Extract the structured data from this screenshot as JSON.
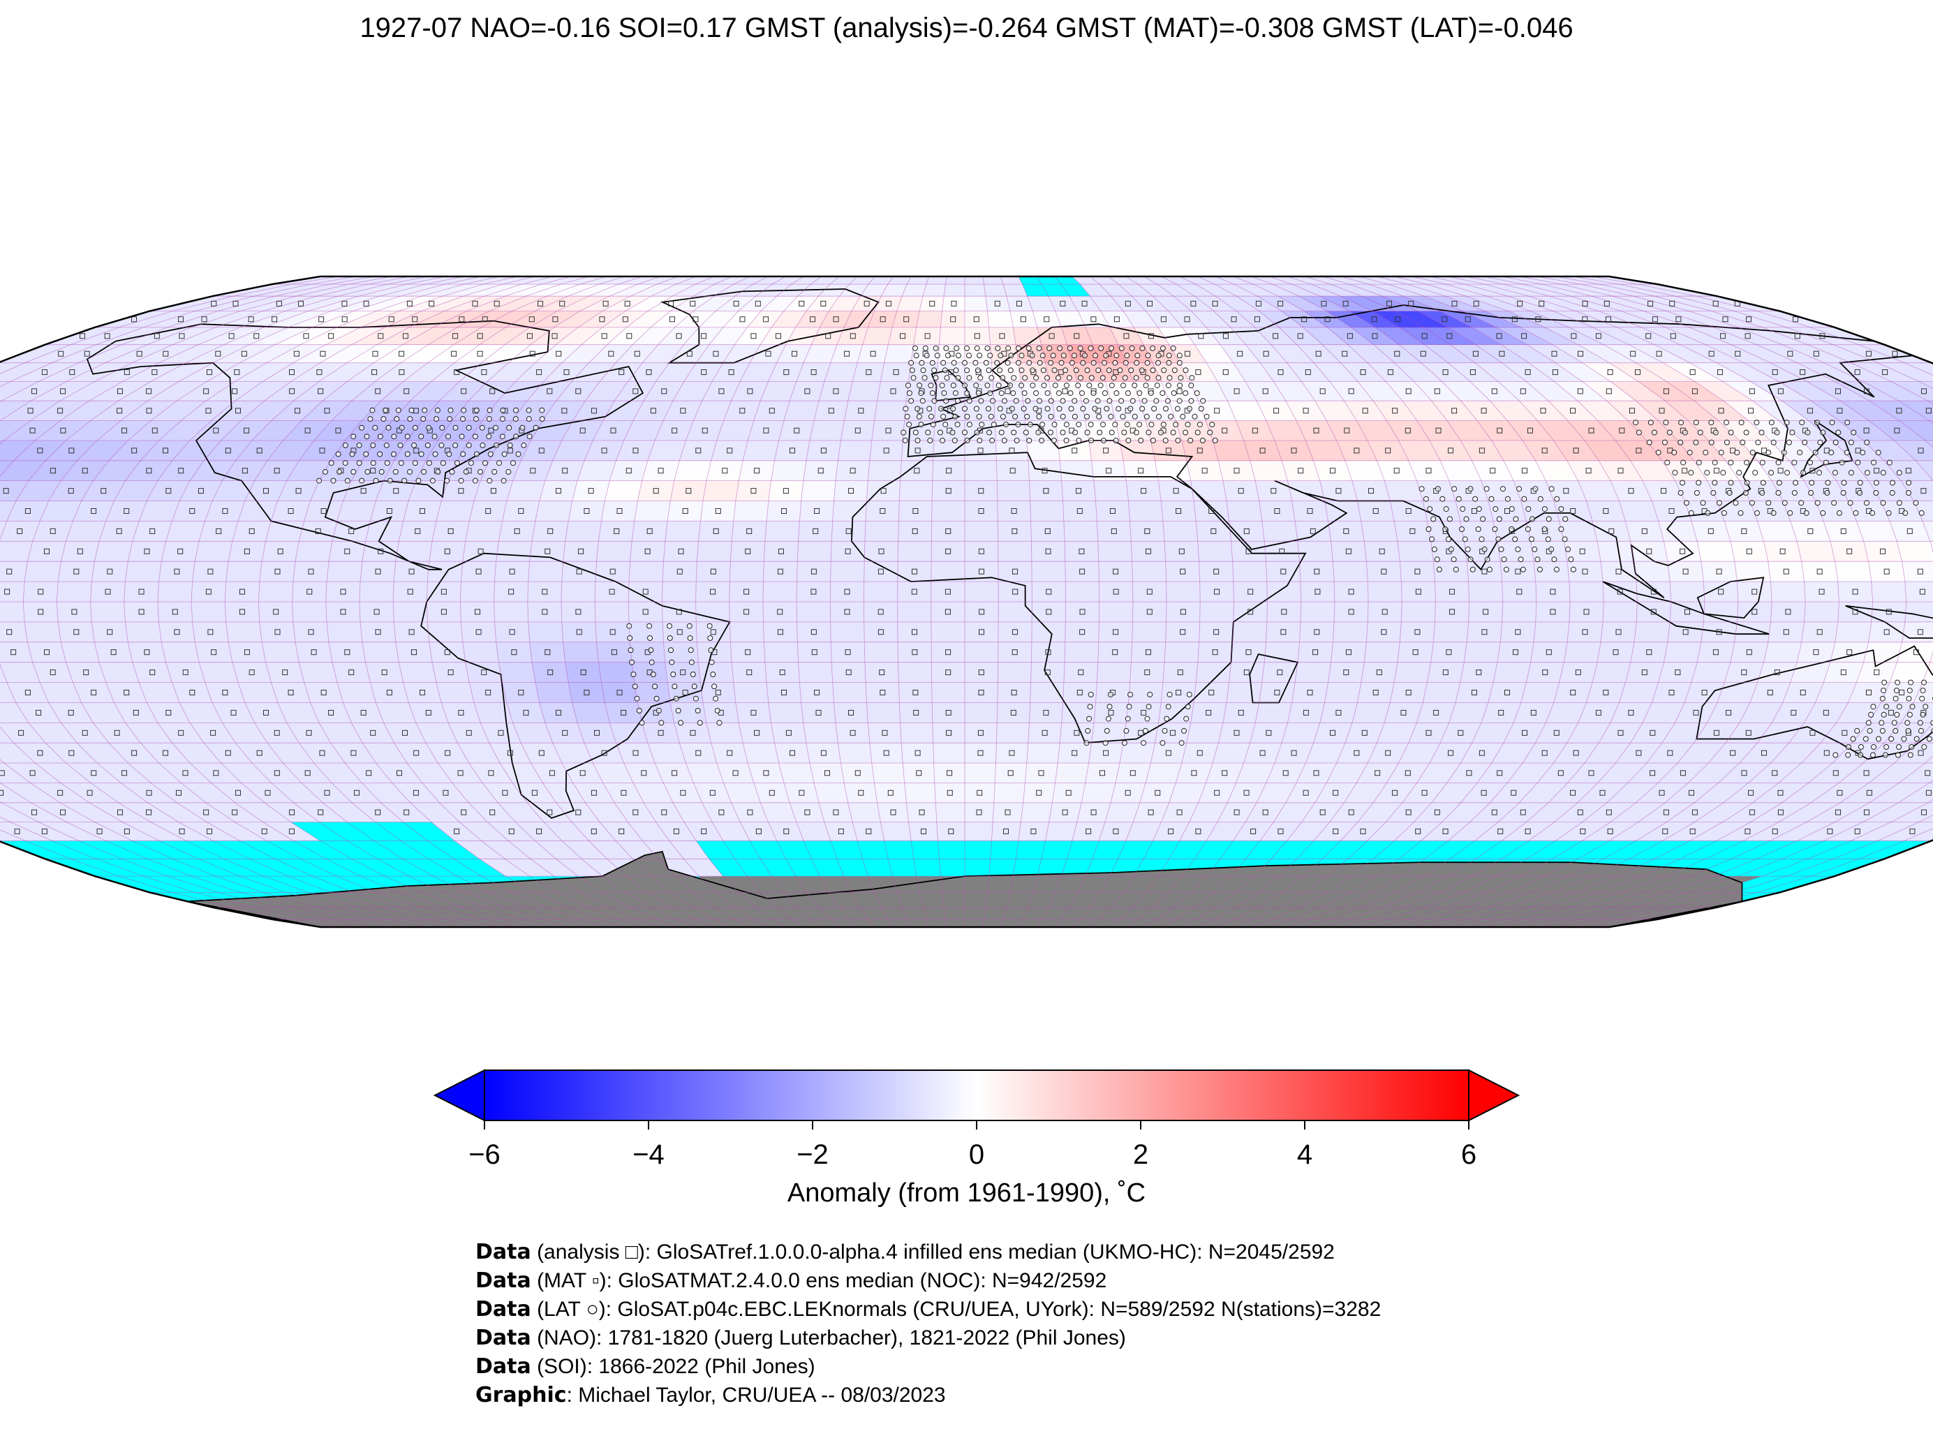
{
  "title": "1927-07 NAO=-0.16 SOI=0.17 GMST (analysis)=-0.264 GMST (MAT)=-0.308 GMST (LAT)=-0.046",
  "colorbar": {
    "ticks": [
      "−6",
      "−4",
      "−2",
      "0",
      "2",
      "4",
      "6"
    ],
    "tick_values": [
      -6,
      -4,
      -2,
      0,
      2,
      4,
      6
    ],
    "label": "Anomaly (from 1961-1990), ˚C",
    "colors": {
      "min": "#0000ff",
      "mid": "#ffffff",
      "max": "#ff0000"
    }
  },
  "map": {
    "projection": "Robinson",
    "grid_resolution_deg": 5,
    "colors": {
      "sea_ice": "#00ffff",
      "antarctica_land": "#808080",
      "grid": "#b04fb0",
      "coast": "#000000"
    }
  },
  "credits": [
    {
      "bold": "Data",
      "text": " (analysis □): GloSATref.1.0.0.0-alpha.4 infilled ens median (UKMO-HC): N=2045/2592"
    },
    {
      "bold": "Data",
      "text": " (MAT ▫): GloSATMAT.2.4.0.0 ens median (NOC): N=942/2592"
    },
    {
      "bold": "Data",
      "text": " (LAT ○): GloSAT.p04c.EBC.LEKnormals (CRU/UEA, UYork): N=589/2592 N(stations)=3282"
    },
    {
      "bold": "Data",
      "text": " (NAO): 1781-1820 (Juerg Luterbacher), 1821-2022 (Phil Jones)"
    },
    {
      "bold": "Data",
      "text": " (SOI): 1866-2022 (Phil Jones)"
    },
    {
      "bold": "Graphic",
      "text": ": Michael Taylor, CRU/UEA -- 08/03/2023"
    }
  ]
}
